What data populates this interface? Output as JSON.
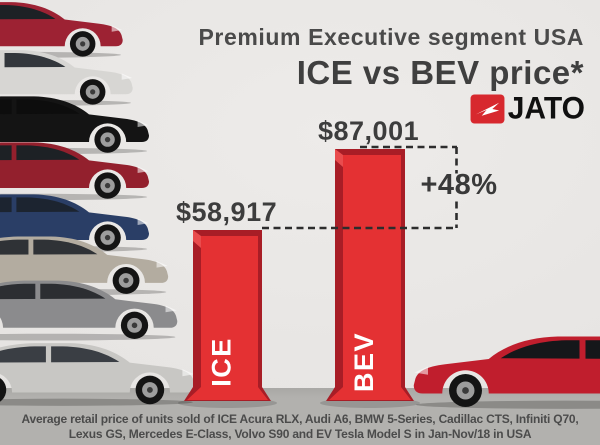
{
  "header": {
    "subtitle": "Premium Executive segment USA",
    "title": "ICE vs BEV price*",
    "brand": "JATO"
  },
  "chart_data": {
    "type": "bar",
    "categories": [
      "ICE",
      "BEV"
    ],
    "values": [
      58917,
      87001
    ],
    "value_labels": [
      "$58,917",
      "$87,001"
    ],
    "annotation": "+48%",
    "title": "ICE vs BEV price*",
    "subtitle": "Premium Executive segment USA",
    "ylim": [
      0,
      87001
    ],
    "grid": false,
    "legend": "none",
    "bar_color": "#e43133",
    "bar_edge_color": "#a81d26",
    "bar_highlight_color": "#ef5252",
    "bar_label_color": "#ffffff",
    "dash_color": "#2d2d2d"
  },
  "footnote": {
    "line1": "Average retail price of units sold of ICE Acura RLX, Audi A6, BMW 5-Series, Cadillac CTS, Infiniti Q70,",
    "line2": "Lexus GS, Mercedes E-Class, Volvo S90 and EV Tesla Model S in Jan-Nov/18 in USA"
  },
  "illustrations": {
    "left_cars": [
      {
        "name": "Acura RLX",
        "color": "#9d2233",
        "glass": "#1d2125"
      },
      {
        "name": "Audi A6",
        "color": "#d7d6d3",
        "glass": "#33373c"
      },
      {
        "name": "BMW 5-Series",
        "color": "#141414",
        "glass": "#0d0d0d"
      },
      {
        "name": "Cadillac CTS",
        "color": "#93202d",
        "glass": "#1d2125"
      },
      {
        "name": "Infiniti Q70",
        "color": "#2a3e66",
        "glass": "#1c2430"
      },
      {
        "name": "Lexus GS",
        "color": "#b3aca0",
        "glass": "#2f3236"
      },
      {
        "name": "Mercedes E-Class",
        "color": "#8b8b8d",
        "glass": "#2c2e32"
      },
      {
        "name": "Volvo S90",
        "color": "#c8c7c4",
        "glass": "#3a3e44"
      }
    ],
    "right_car": {
      "name": "Tesla Model S",
      "color": "#c01e2d",
      "glass": "#15171a"
    }
  },
  "colors": {
    "background": "#e7e5e3",
    "floor": "#b2b1ae",
    "text_dark": "#3d3d3d",
    "brand_red": "#d7282e"
  }
}
